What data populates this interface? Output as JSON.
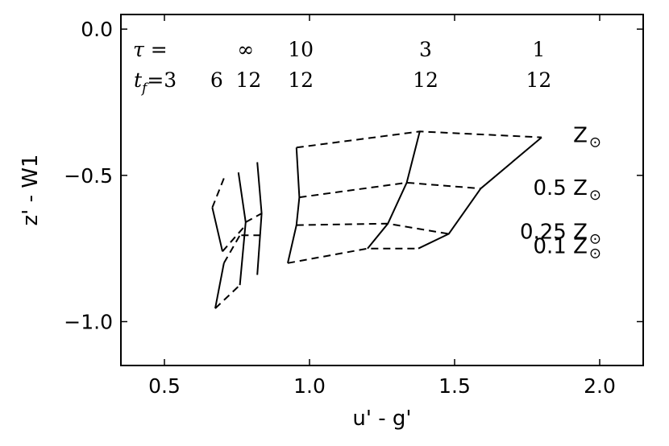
{
  "chart_data": {
    "type": "line",
    "title": "",
    "xlabel": "u' - g'",
    "ylabel": "z' - W1",
    "xlim": [
      0.35,
      2.15
    ],
    "ylim": [
      -1.15,
      0.05
    ],
    "y_inverted": true,
    "grid": false,
    "x_ticks": [
      0.5,
      1.0,
      1.5,
      2.0
    ],
    "x_tick_labels": [
      "0.5",
      "1.0",
      "1.5",
      "2.0"
    ],
    "y_ticks": [
      0.0,
      -0.5,
      -1.0
    ],
    "y_tick_labels": [
      "0.0",
      "−0.5",
      "−1.0"
    ],
    "tau_header": {
      "label": "τ =",
      "values": [
        "∞",
        "10",
        "3",
        "1"
      ],
      "x": [
        0.78,
        0.97,
        1.4,
        1.79
      ]
    },
    "tf_header": {
      "label": "t",
      "subscript": "f",
      "equals": "=3",
      "values": [
        "6",
        "12",
        "12",
        "12",
        "12"
      ],
      "x": [
        0.68,
        0.79,
        0.97,
        1.4,
        1.79
      ]
    },
    "metallicity_labels": [
      {
        "text": "Z",
        "y": -0.37
      },
      {
        "text": "0.5 Z",
        "y": -0.55
      },
      {
        "text": "0.25 Z",
        "y": -0.7
      },
      {
        "text": "0.1 Z",
        "y": -0.75
      }
    ],
    "sun_symbol": "⊙",
    "solid_lines": [
      {
        "x": [
          0.705,
          0.675
        ],
        "y": [
          -0.8,
          -0.955
        ]
      },
      {
        "x": [
          0.665,
          0.7
        ],
        "y": [
          -0.61,
          -0.76
        ]
      },
      {
        "x": [
          0.755,
          0.78,
          0.76
        ],
        "y": [
          -0.49,
          -0.66,
          -0.875
        ]
      },
      {
        "x": [
          0.82,
          0.835,
          0.82
        ],
        "y": [
          -0.455,
          -0.63,
          -0.84
        ]
      },
      {
        "x": [
          0.955,
          0.965,
          0.955,
          0.925
        ],
        "y": [
          -0.405,
          -0.575,
          -0.67,
          -0.8
        ]
      },
      {
        "x": [
          1.38,
          1.335,
          1.27,
          1.2
        ],
        "y": [
          -0.35,
          -0.525,
          -0.665,
          -0.75
        ]
      },
      {
        "x": [
          1.8,
          1.59,
          1.48,
          1.375
        ],
        "y": [
          -0.37,
          -0.545,
          -0.7,
          -0.75
        ]
      }
    ],
    "dashed_lines": [
      {
        "x": [
          0.665,
          0.705
        ],
        "y": [
          -0.61,
          -0.51
        ]
      },
      {
        "x": [
          0.7,
          0.78
        ],
        "y": [
          -0.76,
          -0.67
        ]
      },
      {
        "x": [
          0.78,
          0.835
        ],
        "y": [
          -0.66,
          -0.63
        ]
      },
      {
        "x": [
          0.765,
          0.835
        ],
        "y": [
          -0.705,
          -0.705
        ]
      },
      {
        "x": [
          0.705,
          0.76
        ],
        "y": [
          -0.8,
          -0.705
        ]
      },
      {
        "x": [
          0.675,
          0.76
        ],
        "y": [
          -0.955,
          -0.875
        ]
      },
      {
        "x": [
          0.955,
          1.38,
          1.8
        ],
        "y": [
          -0.405,
          -0.35,
          -0.37
        ]
      },
      {
        "x": [
          0.965,
          1.335,
          1.59
        ],
        "y": [
          -0.575,
          -0.525,
          -0.545
        ]
      },
      {
        "x": [
          0.955,
          1.27,
          1.48
        ],
        "y": [
          -0.67,
          -0.665,
          -0.7
        ]
      },
      {
        "x": [
          0.925,
          1.2,
          1.375
        ],
        "y": [
          -0.8,
          -0.75,
          -0.75
        ]
      }
    ]
  }
}
